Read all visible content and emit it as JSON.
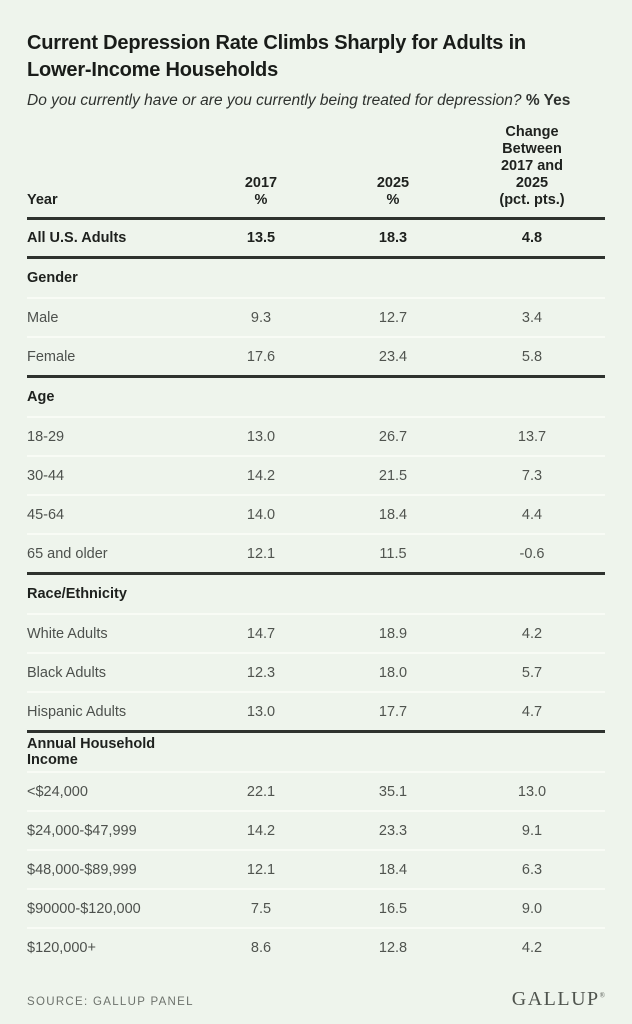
{
  "page": {
    "background": "#eef4ec",
    "accent_rule_color": "#2e322e",
    "separator_color": "#f8fbf5"
  },
  "header": {
    "title": "Current Depression Rate Climbs Sharply for Adults in Lower-Income Households",
    "subtitle_question": "Do you currently have or are you currently being treated for depression?",
    "subtitle_suffix": "% Yes"
  },
  "chart_data": {
    "type": "table",
    "title": "Current Depression Rate Climbs Sharply for Adults in Lower-Income Households",
    "subtitle": "Do you currently have or are you currently being treated for depression? % Yes",
    "column_headers": {
      "label": "Year",
      "col_2017": "2017\n%",
      "col_2025": "2025\n%",
      "col_change": "Change\nBetween\n2017 and\n2025\n(pct. pts.)"
    },
    "columns_flat": [
      "Year",
      "2017 %",
      "2025 %",
      "Change Between 2017 and 2025 (pct. pts.)"
    ],
    "summary_row": {
      "label": "All U.S. Adults",
      "values": [
        "13.5",
        "18.3",
        "4.8"
      ]
    },
    "sections": [
      {
        "title": "Gender",
        "rows": [
          {
            "label": "Male",
            "values": [
              "9.3",
              "12.7",
              "3.4"
            ]
          },
          {
            "label": "Female",
            "values": [
              "17.6",
              "23.4",
              "5.8"
            ]
          }
        ]
      },
      {
        "title": "Age",
        "rows": [
          {
            "label": "18-29",
            "values": [
              "13.0",
              "26.7",
              "13.7"
            ]
          },
          {
            "label": "30-44",
            "values": [
              "14.2",
              "21.5",
              "7.3"
            ]
          },
          {
            "label": "45-64",
            "values": [
              "14.0",
              "18.4",
              "4.4"
            ]
          },
          {
            "label": "65 and older",
            "values": [
              "12.1",
              "11.5",
              "-0.6"
            ]
          }
        ]
      },
      {
        "title": "Race/Ethnicity",
        "rows": [
          {
            "label": "White Adults",
            "values": [
              "14.7",
              "18.9",
              "4.2"
            ]
          },
          {
            "label": "Black Adults",
            "values": [
              "12.3",
              "18.0",
              "5.7"
            ]
          },
          {
            "label": "Hispanic Adults",
            "values": [
              "13.0",
              "17.7",
              "4.7"
            ]
          }
        ]
      },
      {
        "title": "Annual Household Income",
        "rows": [
          {
            "label": "<$24,000",
            "values": [
              "22.1",
              "35.1",
              "13.0"
            ]
          },
          {
            "label": "$24,000-$47,999",
            "values": [
              "14.2",
              "23.3",
              "9.1"
            ]
          },
          {
            "label": "$48,000-$89,999",
            "values": [
              "12.1",
              "18.4",
              "6.3"
            ]
          },
          {
            "label": "$90000-$120,000",
            "values": [
              "7.5",
              "16.5",
              "9.0"
            ]
          },
          {
            "label": "$120,000+",
            "values": [
              "8.6",
              "12.8",
              "4.2"
            ]
          }
        ]
      }
    ]
  },
  "footer": {
    "source": "SOURCE: GALLUP PANEL",
    "logo": "GALLUP",
    "logo_mark": "®"
  }
}
